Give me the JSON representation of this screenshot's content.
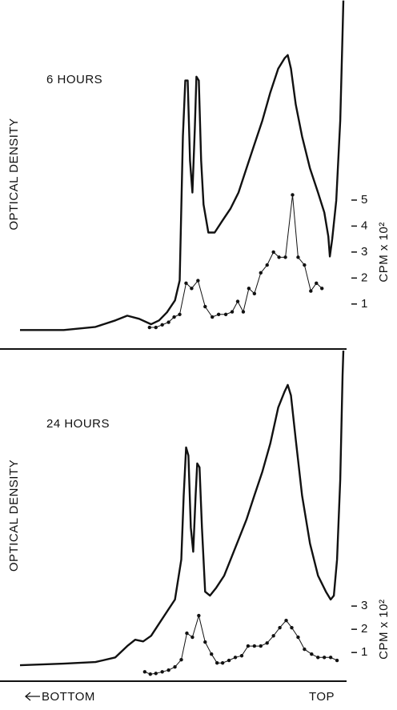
{
  "chart_data": [
    {
      "type": "line",
      "title": "6 HOURS",
      "ylabel": "OPTICAL DENSITY",
      "y2label": "CPM x 10²",
      "y_axis_side": "right",
      "xlim": [
        0,
        410
      ],
      "ylim": [
        -0.7,
        12.7
      ],
      "yticks": [
        1,
        2,
        3,
        4,
        5
      ],
      "series": [
        {
          "color": "#111111",
          "marker": "none",
          "x": [
            0,
            55,
            95,
            120,
            135,
            150,
            165,
            175,
            185,
            195,
            201,
            205,
            208,
            211,
            214,
            217,
            220,
            222,
            225,
            228,
            231,
            237,
            245,
            255,
            265,
            275,
            285,
            295,
            305,
            315,
            325,
            333,
            337,
            341,
            347,
            355,
            365,
            375,
            383,
            388,
            390,
            393,
            398,
            403,
            406,
            407
          ],
          "values": [
            0,
            0,
            0.12,
            0.37,
            0.55,
            0.43,
            0.22,
            0.37,
            0.68,
            1.14,
            1.91,
            7.45,
            9.6,
            9.6,
            6.52,
            5.29,
            7.75,
            9.75,
            9.6,
            6.52,
            4.83,
            3.75,
            3.75,
            4.22,
            4.68,
            5.29,
            6.22,
            7.14,
            8.06,
            9.14,
            10.06,
            10.46,
            10.58,
            10.06,
            8.68,
            7.45,
            6.22,
            5.29,
            4.52,
            3.6,
            2.83,
            3.51,
            4.98,
            8.06,
            11.45,
            12.68
          ]
        },
        {
          "color": "#111111",
          "marker": "dot",
          "x": [
            163,
            171,
            179,
            187,
            194,
            201,
            209,
            216,
            224,
            233,
            242,
            250,
            259,
            267,
            274,
            281,
            288,
            295,
            303,
            311,
            319,
            326,
            334,
            343,
            350,
            358,
            366,
            373,
            380
          ],
          "values": [
            0.1,
            0.1,
            0.2,
            0.3,
            0.5,
            0.6,
            1.8,
            1.6,
            1.9,
            0.9,
            0.5,
            0.6,
            0.6,
            0.7,
            1.1,
            0.7,
            1.6,
            1.4,
            2.2,
            2.5,
            3.0,
            2.8,
            2.8,
            5.2,
            2.8,
            2.5,
            1.5,
            1.8,
            1.6
          ]
        }
      ]
    },
    {
      "type": "line",
      "title": "24 HOURS",
      "ylabel": "OPTICAL DENSITY",
      "y2label": "CPM x 10²",
      "y_axis_side": "right",
      "xlim": [
        0,
        410
      ],
      "ylim": [
        -0.2,
        14.0
      ],
      "yticks": [
        1,
        2,
        3
      ],
      "series": [
        {
          "color": "#111111",
          "marker": "none",
          "x": [
            0,
            55,
            95,
            120,
            135,
            145,
            155,
            165,
            175,
            185,
            195,
            203,
            206,
            209,
            212,
            215,
            218,
            221,
            223,
            226,
            229,
            233,
            239,
            247,
            257,
            265,
            275,
            285,
            295,
            305,
            315,
            325,
            333,
            337,
            341,
            347,
            355,
            365,
            375,
            385,
            391,
            395,
            399,
            403,
            406,
            407
          ],
          "values": [
            0.45,
            0.52,
            0.59,
            0.79,
            1.28,
            1.55,
            1.48,
            1.72,
            2.24,
            2.76,
            3.28,
            5.0,
            7.76,
            9.83,
            9.48,
            6.38,
            5.34,
            7.76,
            9.14,
            8.97,
            6.38,
            3.62,
            3.45,
            3.79,
            4.31,
            5.0,
            5.86,
            6.72,
            7.76,
            8.79,
            10.0,
            11.55,
            12.24,
            12.52,
            12.07,
            10.17,
            7.76,
            5.69,
            4.31,
            3.62,
            3.28,
            3.45,
            5.0,
            8.45,
            12.93,
            14.0
          ]
        },
        {
          "color": "#111111",
          "marker": "dot",
          "x": [
            157,
            164,
            171,
            179,
            187,
            195,
            203,
            210,
            217,
            225,
            233,
            241,
            248,
            255,
            263,
            271,
            279,
            287,
            295,
            303,
            311,
            319,
            327,
            335,
            342,
            350,
            358,
            367,
            375,
            383,
            391,
            399
          ],
          "values": [
            0.17,
            0.07,
            0.1,
            0.17,
            0.24,
            0.38,
            0.69,
            1.83,
            1.66,
            2.59,
            1.45,
            0.93,
            0.55,
            0.55,
            0.66,
            0.79,
            0.86,
            1.28,
            1.28,
            1.28,
            1.41,
            1.72,
            2.07,
            2.38,
            2.07,
            1.66,
            1.14,
            0.93,
            0.79,
            0.79,
            0.79,
            0.66
          ]
        }
      ]
    }
  ],
  "x_axis": {
    "left": "BOTTOM",
    "right": "TOP"
  }
}
